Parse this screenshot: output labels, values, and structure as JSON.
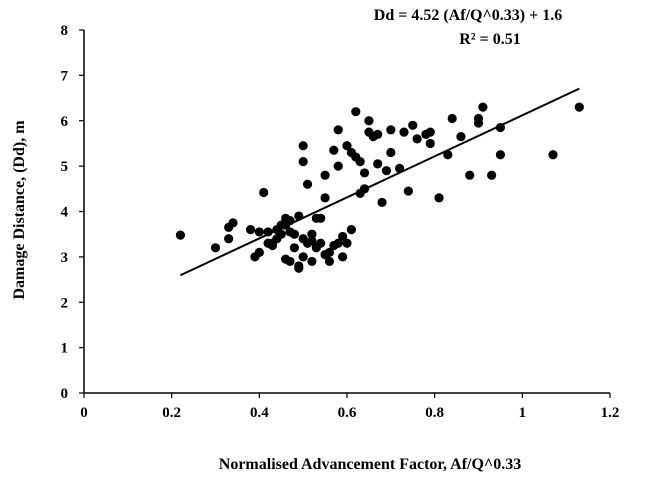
{
  "chart_data": {
    "type": "scatter",
    "xlabel": "Normalised Advancement Factor, Af/Q^0.33",
    "ylabel": "Damage Distance, (Dd), m",
    "xlim": [
      0,
      1.2
    ],
    "ylim": [
      0,
      8
    ],
    "x_ticks": [
      "0",
      "0.2",
      "0.4",
      "0.6",
      "0.8",
      "1",
      "1.2"
    ],
    "y_ticks": [
      "0",
      "1",
      "2",
      "3",
      "4",
      "5",
      "6",
      "7",
      "8"
    ],
    "grid": false,
    "annotation": {
      "equation": "Dd = 4.52 (Af/Q^0.33) + 1.6",
      "r_squared": "R² = 0.51"
    },
    "trendline": {
      "slope": 4.52,
      "intercept": 1.6,
      "x_range": [
        0.22,
        1.13
      ]
    },
    "points": [
      [
        0.22,
        3.48
      ],
      [
        0.3,
        3.2
      ],
      [
        0.33,
        3.4
      ],
      [
        0.33,
        3.65
      ],
      [
        0.34,
        3.75
      ],
      [
        0.38,
        3.6
      ],
      [
        0.39,
        3.0
      ],
      [
        0.4,
        3.1
      ],
      [
        0.4,
        3.55
      ],
      [
        0.41,
        4.42
      ],
      [
        0.42,
        3.55
      ],
      [
        0.42,
        3.3
      ],
      [
        0.43,
        3.3
      ],
      [
        0.43,
        3.25
      ],
      [
        0.44,
        3.4
      ],
      [
        0.44,
        3.6
      ],
      [
        0.45,
        3.7
      ],
      [
        0.45,
        3.5
      ],
      [
        0.46,
        3.85
      ],
      [
        0.46,
        3.7
      ],
      [
        0.46,
        2.95
      ],
      [
        0.47,
        3.8
      ],
      [
        0.47,
        3.55
      ],
      [
        0.47,
        2.9
      ],
      [
        0.48,
        3.5
      ],
      [
        0.48,
        3.2
      ],
      [
        0.49,
        2.8
      ],
      [
        0.49,
        2.75
      ],
      [
        0.49,
        3.9
      ],
      [
        0.5,
        3.4
      ],
      [
        0.5,
        3.0
      ],
      [
        0.5,
        5.1
      ],
      [
        0.5,
        5.45
      ],
      [
        0.51,
        4.6
      ],
      [
        0.51,
        3.3
      ],
      [
        0.52,
        3.5
      ],
      [
        0.52,
        3.35
      ],
      [
        0.52,
        2.9
      ],
      [
        0.53,
        3.85
      ],
      [
        0.53,
        3.2
      ],
      [
        0.54,
        3.85
      ],
      [
        0.54,
        3.3
      ],
      [
        0.55,
        3.05
      ],
      [
        0.55,
        4.3
      ],
      [
        0.55,
        4.8
      ],
      [
        0.56,
        3.1
      ],
      [
        0.56,
        2.9
      ],
      [
        0.57,
        3.25
      ],
      [
        0.57,
        5.35
      ],
      [
        0.58,
        5.8
      ],
      [
        0.58,
        5.0
      ],
      [
        0.58,
        3.3
      ],
      [
        0.59,
        3.0
      ],
      [
        0.59,
        3.45
      ],
      [
        0.6,
        3.3
      ],
      [
        0.6,
        5.45
      ],
      [
        0.61,
        5.3
      ],
      [
        0.61,
        3.6
      ],
      [
        0.62,
        5.2
      ],
      [
        0.62,
        6.2
      ],
      [
        0.63,
        5.1
      ],
      [
        0.63,
        4.4
      ],
      [
        0.64,
        4.85
      ],
      [
        0.64,
        4.5
      ],
      [
        0.65,
        5.75
      ],
      [
        0.65,
        6.0
      ],
      [
        0.66,
        5.65
      ],
      [
        0.67,
        5.7
      ],
      [
        0.67,
        5.05
      ],
      [
        0.68,
        4.2
      ],
      [
        0.69,
        4.9
      ],
      [
        0.7,
        5.8
      ],
      [
        0.7,
        5.3
      ],
      [
        0.72,
        4.95
      ],
      [
        0.73,
        5.75
      ],
      [
        0.74,
        4.45
      ],
      [
        0.75,
        5.9
      ],
      [
        0.76,
        5.6
      ],
      [
        0.78,
        5.7
      ],
      [
        0.79,
        5.75
      ],
      [
        0.79,
        5.5
      ],
      [
        0.81,
        4.3
      ],
      [
        0.83,
        5.25
      ],
      [
        0.84,
        6.05
      ],
      [
        0.86,
        5.65
      ],
      [
        0.88,
        4.8
      ],
      [
        0.9,
        5.95
      ],
      [
        0.9,
        6.05
      ],
      [
        0.91,
        6.3
      ],
      [
        0.93,
        4.8
      ],
      [
        0.95,
        5.85
      ],
      [
        0.95,
        5.25
      ],
      [
        1.07,
        5.25
      ],
      [
        1.13,
        6.3
      ]
    ]
  }
}
